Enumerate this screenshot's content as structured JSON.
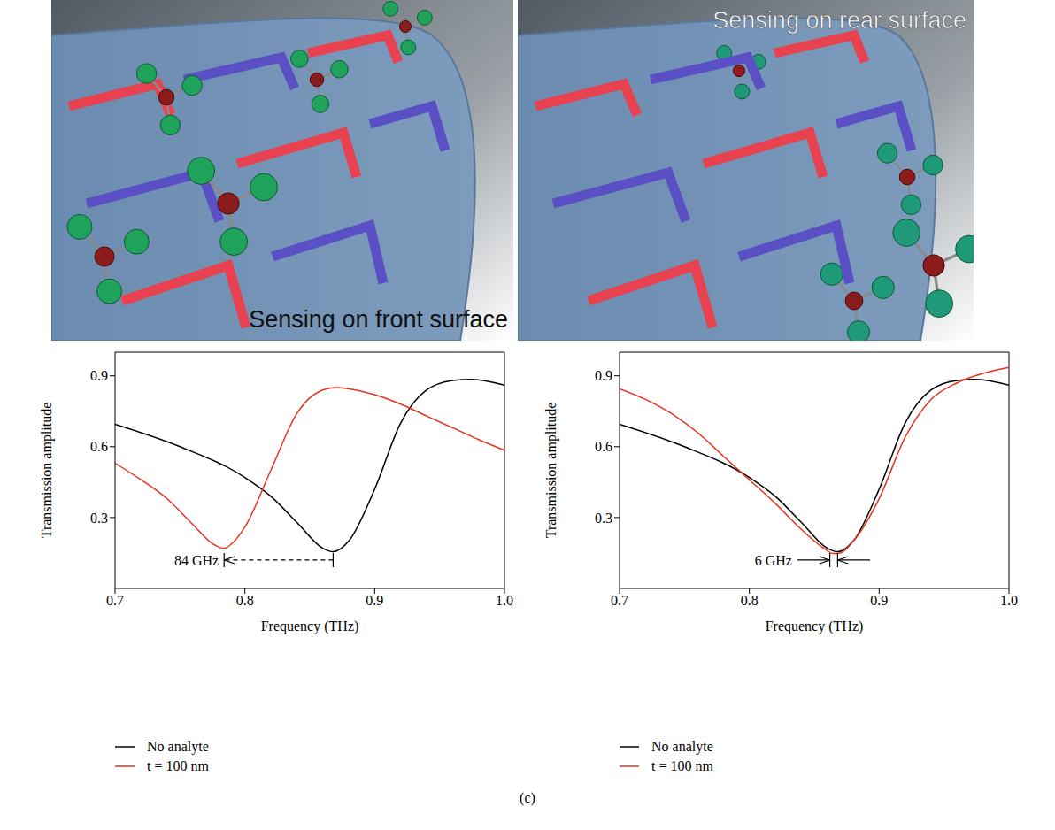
{
  "illustrations": [
    {
      "label": "Sensing on front surface"
    },
    {
      "label": "Sensing on rear surface"
    }
  ],
  "panel_label": "(c)",
  "chart_data": [
    {
      "type": "line",
      "x_label": "Frequency (THz)",
      "y_label": "Transmission amplitude",
      "xlim": [
        0.7,
        1.0
      ],
      "xticks": [
        0.7,
        0.8,
        0.9,
        {
          "value": 1.0,
          "label": "1.0"
        }
      ],
      "ylim": [
        0,
        1.0
      ],
      "yticks": [
        0.3,
        0.6,
        0.9
      ],
      "legend": "bottom",
      "series": [
        {
          "name": "No analyte",
          "color": "#000000",
          "x": [
            0.7,
            0.75,
            0.8,
            0.82,
            0.84,
            0.86,
            0.868,
            0.88,
            0.9,
            0.92,
            0.94,
            0.96,
            0.975,
            1.0
          ],
          "values": [
            0.695,
            0.6,
            0.47,
            0.39,
            0.28,
            0.17,
            0.155,
            0.2,
            0.42,
            0.7,
            0.84,
            0.88,
            0.885,
            0.86
          ]
        },
        {
          "name": "t = 100 nm",
          "color": "#e8321e",
          "x": [
            0.7,
            0.72,
            0.74,
            0.76,
            0.775,
            0.784,
            0.79,
            0.8,
            0.82,
            0.84,
            0.86,
            0.87,
            0.88,
            0.9,
            0.92,
            0.94,
            0.96,
            0.98,
            1.0
          ],
          "values": [
            0.53,
            0.46,
            0.38,
            0.27,
            0.19,
            0.17,
            0.19,
            0.26,
            0.5,
            0.74,
            0.84,
            0.85,
            0.845,
            0.82,
            0.78,
            0.73,
            0.68,
            0.63,
            0.585
          ]
        }
      ],
      "annotations": [
        {
          "text": "84 GHz",
          "x_from": 0.868,
          "x_to": 0.784,
          "y": 0.12,
          "marker": "arrow_between",
          "line_style": "dashed"
        }
      ]
    },
    {
      "type": "line",
      "x_label": "Frequency (THz)",
      "y_label": "Transmission amplitude",
      "xlim": [
        0.7,
        1.0
      ],
      "xticks": [
        0.7,
        0.8,
        0.9,
        {
          "value": 1.0,
          "label": "1.0"
        }
      ],
      "ylim": [
        0,
        1.0
      ],
      "yticks": [
        0.3,
        0.6,
        0.9
      ],
      "legend": "bottom",
      "series": [
        {
          "name": "No analyte",
          "color": "#000000",
          "x": [
            0.7,
            0.75,
            0.8,
            0.82,
            0.84,
            0.86,
            0.868,
            0.88,
            0.9,
            0.92,
            0.94,
            0.96,
            0.975,
            1.0
          ],
          "values": [
            0.695,
            0.6,
            0.47,
            0.39,
            0.28,
            0.17,
            0.155,
            0.2,
            0.42,
            0.7,
            0.84,
            0.88,
            0.885,
            0.86
          ]
        },
        {
          "name": "t = 100 nm",
          "color": "#e8321e",
          "x": [
            0.7,
            0.72,
            0.74,
            0.76,
            0.78,
            0.8,
            0.82,
            0.84,
            0.86,
            0.864,
            0.87,
            0.88,
            0.9,
            0.92,
            0.94,
            0.96,
            0.98,
            1.0
          ],
          "values": [
            0.845,
            0.8,
            0.74,
            0.66,
            0.56,
            0.46,
            0.36,
            0.25,
            0.16,
            0.148,
            0.15,
            0.2,
            0.38,
            0.64,
            0.8,
            0.87,
            0.91,
            0.935
          ]
        }
      ],
      "annotations": [
        {
          "text": "6 GHz",
          "x_from": 0.868,
          "x_to": 0.862,
          "y": 0.12,
          "marker": "arrows_outside",
          "line_style": "solid"
        }
      ]
    }
  ]
}
